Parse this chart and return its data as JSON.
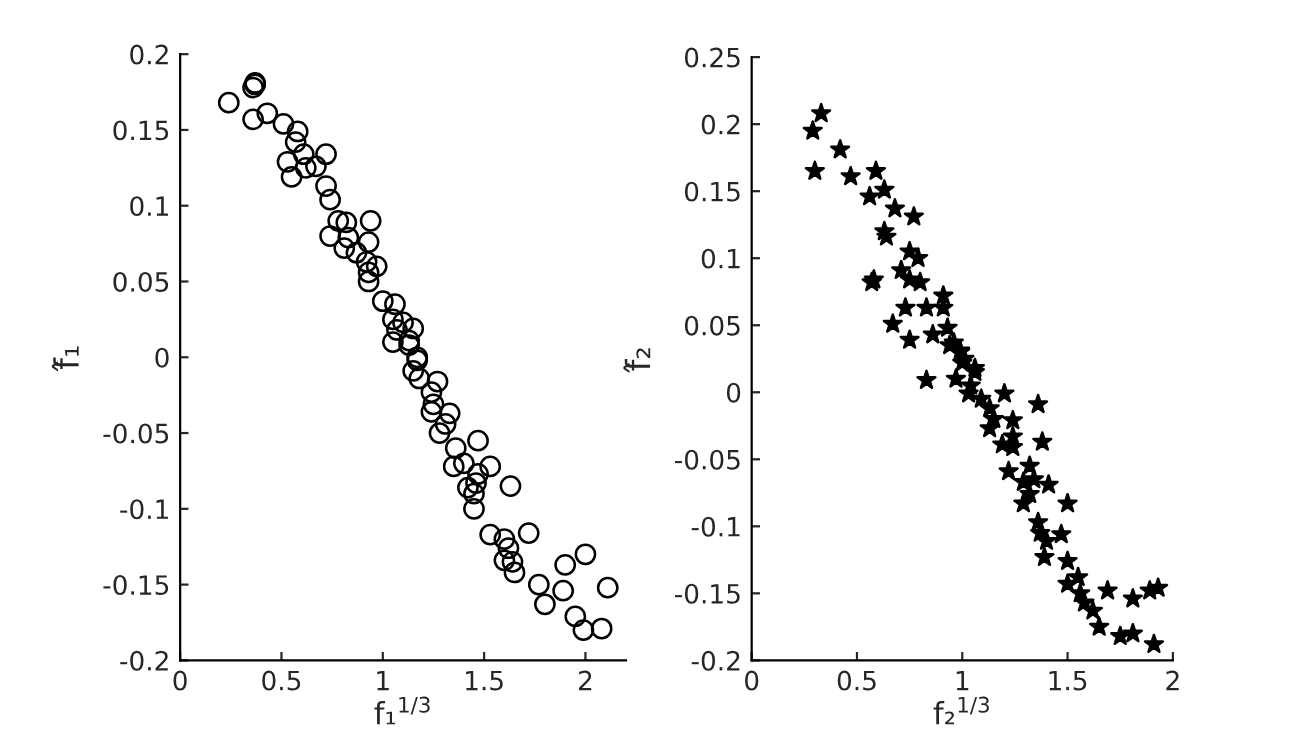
{
  "chart_data": [
    {
      "type": "scatter",
      "xlabel": "f₁$^{1/3}$",
      "ylabel": "f̂₁",
      "marker": "circle",
      "grid": false,
      "legend": false,
      "xlim": [
        0,
        2.2
      ],
      "ylim": [
        -0.2,
        0.2
      ],
      "xticks": [
        0,
        0.5,
        1,
        1.5,
        2
      ],
      "yticks": [
        {
          "value": -0.2,
          "label": "-0.2"
        },
        {
          "value": -0.15,
          "label": "-0.15"
        },
        {
          "value": -0.1,
          "label": "-0.1"
        },
        {
          "value": -0.05,
          "label": "-0.05"
        },
        0,
        0.05,
        0.1,
        0.15,
        0.2
      ],
      "series": [
        {
          "color": "#000000",
          "x": [
            0.36,
            0.37,
            0.37,
            0.24,
            0.36,
            0.43,
            0.51,
            0.58,
            0.57,
            0.61,
            0.53,
            0.72,
            0.67,
            0.62,
            0.55,
            0.72,
            0.74,
            0.78,
            0.82,
            0.94,
            0.74,
            0.83,
            0.93,
            0.81,
            0.87,
            0.92,
            0.97,
            0.93,
            0.93,
            1.0,
            1.06,
            1.05,
            1.1,
            1.15,
            1.07,
            1.13,
            1.05,
            1.17,
            1.13,
            1.17,
            1.15,
            1.18,
            1.27,
            1.24,
            1.25,
            1.24,
            1.33,
            1.31,
            1.28,
            1.36,
            1.47,
            1.4,
            1.35,
            1.53,
            1.47,
            1.46,
            1.42,
            1.63,
            1.45,
            1.45,
            1.53,
            1.72,
            1.6,
            1.62,
            1.6,
            1.64,
            1.65,
            1.77,
            1.9,
            2.0,
            1.89,
            1.8,
            2.11,
            1.95,
            1.99,
            2.08
          ],
          "values": [
            0.178,
            0.18,
            0.181,
            0.168,
            0.157,
            0.161,
            0.154,
            0.149,
            0.142,
            0.134,
            0.129,
            0.134,
            0.126,
            0.125,
            0.119,
            0.113,
            0.104,
            0.09,
            0.089,
            0.09,
            0.08,
            0.079,
            0.076,
            0.072,
            0.069,
            0.063,
            0.06,
            0.056,
            0.05,
            0.037,
            0.035,
            0.025,
            0.023,
            0.019,
            0.018,
            0.011,
            0.01,
            0.0,
            0.008,
            -0.002,
            -0.009,
            -0.014,
            -0.016,
            -0.023,
            -0.031,
            -0.036,
            -0.037,
            -0.044,
            -0.05,
            -0.06,
            -0.055,
            -0.07,
            -0.072,
            -0.072,
            -0.077,
            -0.083,
            -0.086,
            -0.085,
            -0.09,
            -0.1,
            -0.117,
            -0.116,
            -0.12,
            -0.126,
            -0.134,
            -0.135,
            -0.142,
            -0.15,
            -0.137,
            -0.13,
            -0.154,
            -0.163,
            -0.152,
            -0.171,
            -0.18,
            -0.179
          ]
        }
      ]
    },
    {
      "type": "scatter",
      "xlabel": "f₂$^{1/3}$",
      "ylabel": "f̂₂",
      "marker": "star",
      "grid": false,
      "legend": false,
      "xlim": [
        0,
        2
      ],
      "ylim": [
        -0.2,
        0.25
      ],
      "xticks": [
        0,
        0.5,
        1,
        1.5,
        2
      ],
      "yticks": [
        {
          "value": -0.2,
          "label": "-0.2"
        },
        {
          "value": -0.15,
          "label": "-0.15"
        },
        {
          "value": -0.1,
          "label": "-0.1"
        },
        {
          "value": -0.05,
          "label": "-0.05"
        },
        0,
        0.05,
        0.1,
        0.15,
        0.2,
        0.25
      ],
      "series": [
        {
          "color": "#000000",
          "x": [
            0.33,
            0.29,
            0.42,
            0.3,
            0.47,
            0.59,
            0.63,
            0.56,
            0.68,
            0.77,
            0.63,
            0.64,
            0.75,
            0.79,
            0.58,
            0.57,
            0.71,
            0.75,
            0.8,
            0.91,
            0.73,
            0.83,
            0.91,
            0.67,
            0.75,
            0.86,
            0.93,
            0.96,
            0.99,
            1.01,
            1.06,
            0.94,
            0.99,
            1.0,
            1.06,
            0.83,
            0.97,
            1.04,
            1.03,
            1.09,
            1.2,
            1.36,
            1.13,
            1.15,
            1.24,
            1.13,
            1.24,
            1.19,
            1.24,
            1.38,
            1.22,
            1.32,
            1.29,
            1.34,
            1.41,
            1.32,
            1.29,
            1.5,
            1.36,
            1.37,
            1.47,
            1.4,
            1.39,
            1.5,
            1.5,
            1.55,
            1.56,
            1.58,
            1.62,
            1.69,
            1.65,
            1.75,
            1.81,
            1.81,
            1.89,
            1.93,
            1.91
          ],
          "values": [
            0.208,
            0.195,
            0.181,
            0.165,
            0.161,
            0.165,
            0.151,
            0.146,
            0.137,
            0.131,
            0.12,
            0.116,
            0.105,
            0.1,
            0.084,
            0.082,
            0.091,
            0.084,
            0.082,
            0.072,
            0.063,
            0.063,
            0.063,
            0.051,
            0.039,
            0.043,
            0.048,
            0.037,
            0.031,
            0.025,
            0.018,
            0.035,
            0.03,
            0.022,
            0.015,
            0.009,
            0.01,
            0.005,
            -0.001,
            -0.005,
            -0.001,
            -0.009,
            -0.012,
            -0.02,
            -0.021,
            -0.027,
            -0.033,
            -0.039,
            -0.041,
            -0.037,
            -0.059,
            -0.055,
            -0.067,
            -0.065,
            -0.069,
            -0.076,
            -0.083,
            -0.083,
            -0.097,
            -0.105,
            -0.106,
            -0.111,
            -0.123,
            -0.126,
            -0.143,
            -0.138,
            -0.15,
            -0.157,
            -0.163,
            -0.148,
            -0.175,
            -0.182,
            -0.18,
            -0.154,
            -0.148,
            -0.146,
            -0.188
          ]
        }
      ]
    }
  ]
}
